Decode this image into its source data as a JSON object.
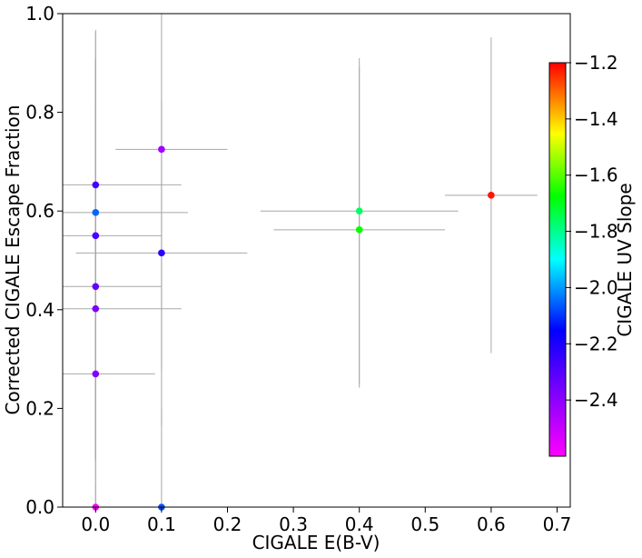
{
  "chart_data": {
    "type": "scatter",
    "title": "",
    "xlabel": "CIGALE E(B-V)",
    "ylabel": "Corrected CIGALE Escape Fraction",
    "xlim": [
      -0.05,
      0.72
    ],
    "ylim": [
      0.0,
      1.0
    ],
    "xticks": [
      0.0,
      0.1,
      0.2,
      0.3,
      0.4,
      0.5,
      0.6,
      0.7
    ],
    "xtick_labels": [
      "0.0",
      "0.1",
      "0.2",
      "0.3",
      "0.4",
      "0.5",
      "0.6",
      "0.7"
    ],
    "yticks": [
      0.0,
      0.2,
      0.4,
      0.6,
      0.8,
      1.0
    ],
    "ytick_labels": [
      "0.0",
      "0.2",
      "0.4",
      "0.6",
      "0.8",
      "1.0"
    ],
    "grid": false,
    "colorbar": {
      "label": "CIGALE UV Slope",
      "range": [
        -2.6,
        -1.2
      ],
      "ticks": [
        -1.2,
        -1.4,
        -1.6,
        -1.8,
        -2.0,
        -2.2,
        -2.4
      ],
      "tick_labels": [
        "−1.2",
        "−1.4",
        "−1.6",
        "−1.8",
        "−2.0",
        "−2.2",
        "−2.4"
      ],
      "colormap": "gist_rainbow (magenta → red)"
    },
    "points": [
      {
        "x": 0.0,
        "y": 0.653,
        "xerr": [
          0.05,
          0.13
        ],
        "yerr": [
          0.56,
          0.31
        ],
        "uv": -2.27
      },
      {
        "x": 0.0,
        "y": 0.597,
        "xerr": [
          0.05,
          0.14
        ],
        "yerr": [
          0.5,
          0.37
        ],
        "uv": -2.05
      },
      {
        "x": 0.0,
        "y": 0.55,
        "xerr": [
          0.05,
          0.1
        ],
        "yerr": [
          0.45,
          0.36
        ],
        "uv": -2.28
      },
      {
        "x": 0.0,
        "y": 0.447,
        "xerr": [
          0.05,
          0.1
        ],
        "yerr": [
          0.35,
          0.46
        ],
        "uv": -2.33
      },
      {
        "x": 0.0,
        "y": 0.402,
        "xerr": [
          0.05,
          0.13
        ],
        "yerr": [
          0.35,
          0.5
        ],
        "uv": -2.37
      },
      {
        "x": 0.0,
        "y": 0.27,
        "xerr": [
          0.05,
          0.09
        ],
        "yerr": [
          0.27,
          0.55
        ],
        "uv": -2.38
      },
      {
        "x": 0.0,
        "y": 0.0,
        "xerr": [
          0.0,
          0.0
        ],
        "yerr": [
          0.0,
          0.05
        ],
        "uv": -2.6
      },
      {
        "x": 0.1,
        "y": 0.725,
        "xerr": [
          0.07,
          0.1
        ],
        "yerr": [
          0.45,
          0.28
        ],
        "uv": -2.43
      },
      {
        "x": 0.1,
        "y": 0.515,
        "xerr": [
          0.13,
          0.13
        ],
        "yerr": [
          0.35,
          0.31
        ],
        "uv": -2.22
      },
      {
        "x": 0.1,
        "y": 0.0,
        "xerr": [
          0.0,
          0.0
        ],
        "yerr": [
          0.0,
          0.2
        ],
        "uv": -2.07
      },
      {
        "x": 0.4,
        "y": 0.6,
        "xerr": [
          0.15,
          0.15
        ],
        "yerr": [
          0.35,
          0.31
        ],
        "uv": -1.76
      },
      {
        "x": 0.4,
        "y": 0.562,
        "xerr": [
          0.13,
          0.13
        ],
        "yerr": [
          0.32,
          0.33
        ],
        "uv": -1.67
      },
      {
        "x": 0.6,
        "y": 0.632,
        "xerr": [
          0.07,
          0.07
        ],
        "yerr": [
          0.32,
          0.32
        ],
        "uv": -1.22
      }
    ]
  }
}
